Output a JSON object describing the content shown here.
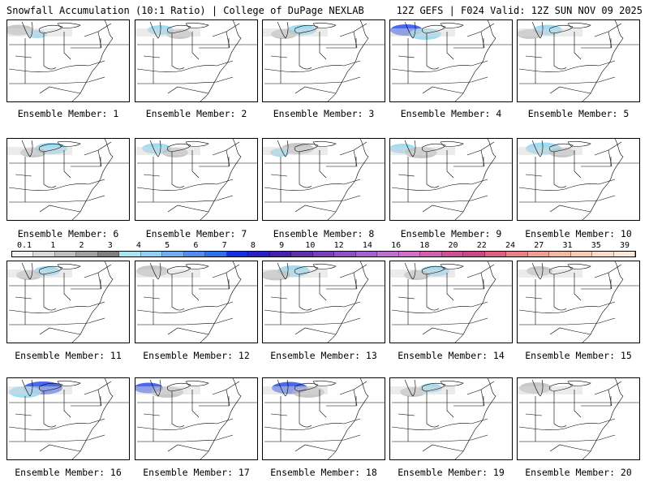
{
  "header": {
    "left": "Snowfall Accumulation (10:1 Ratio) | College of DuPage NEXLAB",
    "right": "12Z GEFS | F024 Valid: 12Z SUN NOV 09 2025"
  },
  "label_prefix": "Ensemble Member: ",
  "members": [
    {
      "label": "Ensemble Member: 1",
      "snow": [
        [
          "gray",
          0.25
        ],
        [
          "lightblue",
          0.1
        ]
      ]
    },
    {
      "label": "Ensemble Member: 2",
      "snow": [
        [
          "lightblue",
          0.2
        ],
        [
          "gray",
          0.2
        ]
      ]
    },
    {
      "label": "Ensemble Member: 3",
      "snow": [
        [
          "lightblue",
          0.25
        ],
        [
          "gray",
          0.2
        ]
      ]
    },
    {
      "label": "Ensemble Member: 4",
      "snow": [
        [
          "blue",
          0.3
        ],
        [
          "lightblue",
          0.3
        ]
      ]
    },
    {
      "label": "Ensemble Member: 5",
      "snow": [
        [
          "lightblue",
          0.25
        ],
        [
          "gray",
          0.2
        ]
      ]
    },
    {
      "label": "Ensemble Member: 6",
      "snow": [
        [
          "lightblue",
          0.3
        ],
        [
          "gray",
          0.2
        ]
      ]
    },
    {
      "label": "Ensemble Member: 7",
      "snow": [
        [
          "lightblue",
          0.25
        ],
        [
          "gray",
          0.2
        ]
      ]
    },
    {
      "label": "Ensemble Member: 8",
      "snow": [
        [
          "gray",
          0.3
        ],
        [
          "lightblue",
          0.1
        ]
      ]
    },
    {
      "label": "Ensemble Member: 9",
      "snow": [
        [
          "lightblue",
          0.2
        ],
        [
          "gray",
          0.3
        ]
      ]
    },
    {
      "label": "Ensemble Member: 10",
      "snow": [
        [
          "lightblue",
          0.35
        ],
        [
          "gray",
          0.2
        ]
      ]
    },
    {
      "label": "Ensemble Member: 11",
      "snow": [
        [
          "lightblue",
          0.2
        ],
        [
          "gray",
          0.2
        ]
      ]
    },
    {
      "label": "Ensemble Member: 12",
      "snow": [
        [
          "gray",
          0.3
        ]
      ]
    },
    {
      "label": "Ensemble Member: 13",
      "snow": [
        [
          "lightblue",
          0.3
        ],
        [
          "gray",
          0.25
        ]
      ]
    },
    {
      "label": "Ensemble Member: 14",
      "snow": [
        [
          "lightblue",
          0.25
        ],
        [
          "gray",
          0.2
        ]
      ]
    },
    {
      "label": "Ensemble Member: 15",
      "snow": [
        [
          "gray",
          0.2
        ]
      ]
    },
    {
      "label": "Ensemble Member: 16",
      "snow": [
        [
          "blue",
          0.4
        ],
        [
          "lightblue",
          0.3
        ]
      ]
    },
    {
      "label": "Ensemble Member: 17",
      "snow": [
        [
          "blue",
          0.25
        ],
        [
          "gray",
          0.3
        ]
      ]
    },
    {
      "label": "Ensemble Member: 18",
      "snow": [
        [
          "blue",
          0.35
        ],
        [
          "gray",
          0.3
        ]
      ]
    },
    {
      "label": "Ensemble Member: 19",
      "snow": [
        [
          "lightblue",
          0.15
        ],
        [
          "gray",
          0.2
        ]
      ]
    },
    {
      "label": "Ensemble Member: 20",
      "snow": [
        [
          "gray",
          0.3
        ]
      ]
    }
  ],
  "colorbar": {
    "ticks": [
      "0.1",
      "1",
      "2",
      "3",
      "4",
      "5",
      "6",
      "7",
      "8",
      "9",
      "10",
      "12",
      "14",
      "16",
      "18",
      "20",
      "22",
      "24",
      "27",
      "31",
      "35",
      "39"
    ],
    "colors": [
      "#f2f2f2",
      "#d9d9d9",
      "#bfbfbf",
      "#a0a0a0",
      "#808080",
      "#a8e6f0",
      "#8fd0f5",
      "#6fb0f5",
      "#4f8ff2",
      "#2f6ff0",
      "#1030e8",
      "#2a20c8",
      "#4a20b0",
      "#6030a8",
      "#7a3fb8",
      "#9050c8",
      "#a860d0",
      "#c070d0",
      "#d070c8",
      "#d060b0",
      "#d05098",
      "#c84888",
      "#e06080",
      "#e88088",
      "#f0a090",
      "#f5b8a0",
      "#f8ccb0",
      "#fadcc8",
      "#fce8d8"
    ]
  }
}
